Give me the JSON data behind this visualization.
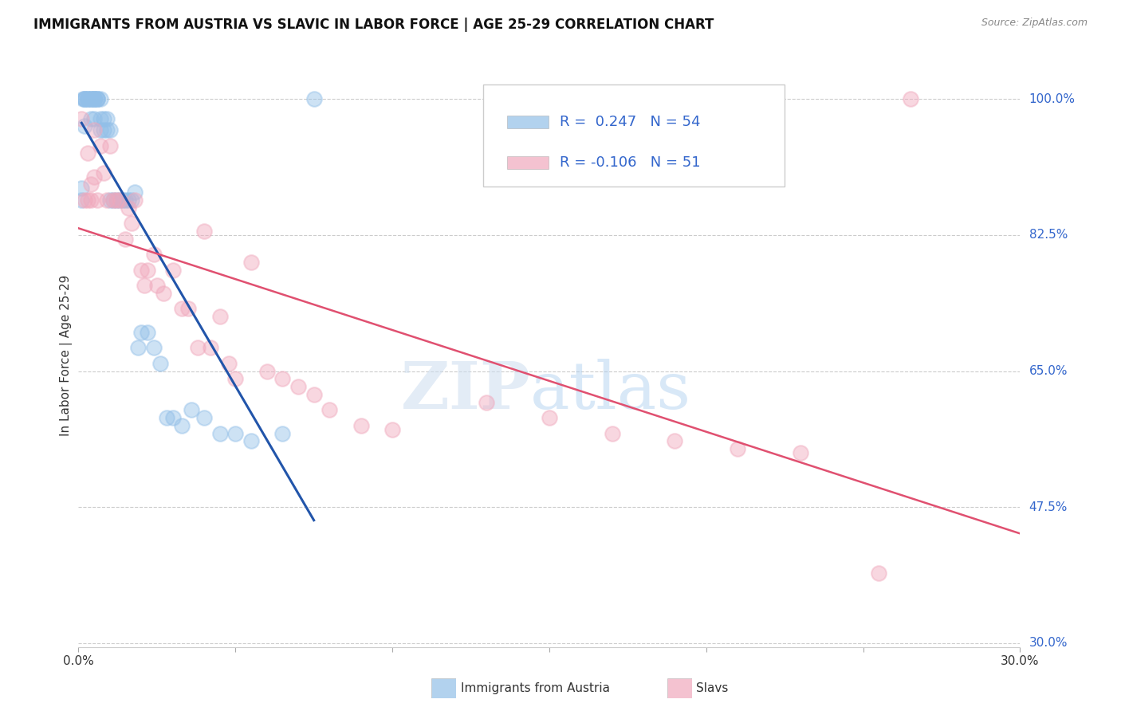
{
  "title": "IMMIGRANTS FROM AUSTRIA VS SLAVIC IN LABOR FORCE | AGE 25-29 CORRELATION CHART",
  "source": "Source: ZipAtlas.com",
  "ylabel": "In Labor Force | Age 25-29",
  "xlim": [
    0.0,
    0.3
  ],
  "ylim": [
    0.295,
    1.045
  ],
  "ytick_vals": [
    0.3,
    0.475,
    0.65,
    0.825,
    1.0
  ],
  "ytick_labels": [
    "30.0%",
    "47.5%",
    "65.0%",
    "82.5%",
    "100.0%"
  ],
  "xtick_vals": [
    0.0,
    0.05,
    0.1,
    0.15,
    0.2,
    0.25,
    0.3
  ],
  "xtick_labels": [
    "0.0%",
    "",
    "",
    "",
    "",
    "",
    "30.0%"
  ],
  "grid_color": "#cccccc",
  "bg_color": "#ffffff",
  "austria_color": "#92bfe8",
  "slavic_color": "#f0a8bc",
  "austria_line_color": "#2255aa",
  "slavic_line_color": "#e05070",
  "austria_R": 0.247,
  "austria_N": 54,
  "slavic_R": -0.106,
  "slavic_N": 51,
  "legend_label_austria": "Immigrants from Austria",
  "legend_label_slavic": "Slavs",
  "austria_x": [
    0.001,
    0.001,
    0.0015,
    0.002,
    0.002,
    0.002,
    0.002,
    0.003,
    0.003,
    0.003,
    0.004,
    0.004,
    0.004,
    0.004,
    0.005,
    0.005,
    0.005,
    0.005,
    0.005,
    0.006,
    0.006,
    0.006,
    0.007,
    0.007,
    0.007,
    0.008,
    0.008,
    0.009,
    0.009,
    0.01,
    0.01,
    0.011,
    0.012,
    0.013,
    0.014,
    0.015,
    0.016,
    0.017,
    0.018,
    0.019,
    0.02,
    0.022,
    0.024,
    0.026,
    0.028,
    0.03,
    0.033,
    0.036,
    0.04,
    0.045,
    0.05,
    0.055,
    0.065,
    0.075
  ],
  "austria_y": [
    0.885,
    0.87,
    1.0,
    1.0,
    1.0,
    1.0,
    0.965,
    1.0,
    1.0,
    1.0,
    1.0,
    1.0,
    1.0,
    0.975,
    1.0,
    1.0,
    1.0,
    1.0,
    0.975,
    1.0,
    1.0,
    1.0,
    1.0,
    0.975,
    0.96,
    0.975,
    0.96,
    0.975,
    0.96,
    0.96,
    0.87,
    0.87,
    0.87,
    0.87,
    0.87,
    0.87,
    0.87,
    0.87,
    0.88,
    0.68,
    0.7,
    0.7,
    0.68,
    0.66,
    0.59,
    0.59,
    0.58,
    0.6,
    0.59,
    0.57,
    0.57,
    0.56,
    0.57,
    1.0
  ],
  "slavic_x": [
    0.001,
    0.002,
    0.003,
    0.003,
    0.004,
    0.004,
    0.005,
    0.005,
    0.006,
    0.007,
    0.008,
    0.009,
    0.01,
    0.011,
    0.012,
    0.013,
    0.015,
    0.016,
    0.017,
    0.018,
    0.02,
    0.021,
    0.022,
    0.024,
    0.025,
    0.027,
    0.03,
    0.033,
    0.035,
    0.038,
    0.04,
    0.042,
    0.045,
    0.048,
    0.05,
    0.055,
    0.06,
    0.065,
    0.07,
    0.075,
    0.08,
    0.09,
    0.1,
    0.13,
    0.15,
    0.17,
    0.19,
    0.21,
    0.23,
    0.255,
    0.265
  ],
  "slavic_y": [
    0.975,
    0.87,
    0.93,
    0.87,
    0.89,
    0.87,
    0.96,
    0.9,
    0.87,
    0.94,
    0.905,
    0.87,
    0.94,
    0.87,
    0.87,
    0.87,
    0.82,
    0.86,
    0.84,
    0.87,
    0.78,
    0.76,
    0.78,
    0.8,
    0.76,
    0.75,
    0.78,
    0.73,
    0.73,
    0.68,
    0.83,
    0.68,
    0.72,
    0.66,
    0.64,
    0.79,
    0.65,
    0.64,
    0.63,
    0.62,
    0.6,
    0.58,
    0.575,
    0.61,
    0.59,
    0.57,
    0.56,
    0.55,
    0.545,
    0.39,
    1.0
  ]
}
